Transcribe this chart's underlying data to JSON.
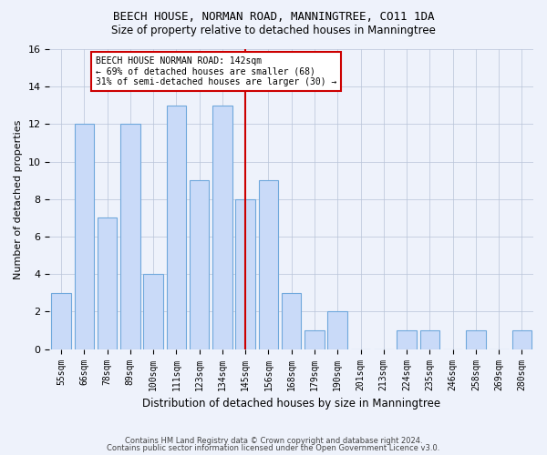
{
  "title": "BEECH HOUSE, NORMAN ROAD, MANNINGTREE, CO11 1DA",
  "subtitle": "Size of property relative to detached houses in Manningtree",
  "xlabel": "Distribution of detached houses by size in Manningtree",
  "ylabel": "Number of detached properties",
  "categories": [
    "55sqm",
    "66sqm",
    "78sqm",
    "89sqm",
    "100sqm",
    "111sqm",
    "123sqm",
    "134sqm",
    "145sqm",
    "156sqm",
    "168sqm",
    "179sqm",
    "190sqm",
    "201sqm",
    "213sqm",
    "224sqm",
    "235sqm",
    "246sqm",
    "258sqm",
    "269sqm",
    "280sqm"
  ],
  "values": [
    3,
    12,
    7,
    12,
    4,
    13,
    9,
    13,
    8,
    9,
    3,
    1,
    2,
    0,
    0,
    1,
    1,
    0,
    1,
    0,
    1
  ],
  "bar_color": "#c9daf8",
  "bar_edge_color": "#6fa8dc",
  "marker_index": 8,
  "marker_color": "#cc0000",
  "ylim": [
    0,
    16
  ],
  "yticks": [
    0,
    2,
    4,
    6,
    8,
    10,
    12,
    14,
    16
  ],
  "annotation_line1": "BEECH HOUSE NORMAN ROAD: 142sqm",
  "annotation_line2": "← 69% of detached houses are smaller (68)",
  "annotation_line3": "31% of semi-detached houses are larger (30) →",
  "footer_line1": "Contains HM Land Registry data © Crown copyright and database right 2024.",
  "footer_line2": "Contains public sector information licensed under the Open Government Licence v3.0.",
  "background_color": "#eef2fb"
}
